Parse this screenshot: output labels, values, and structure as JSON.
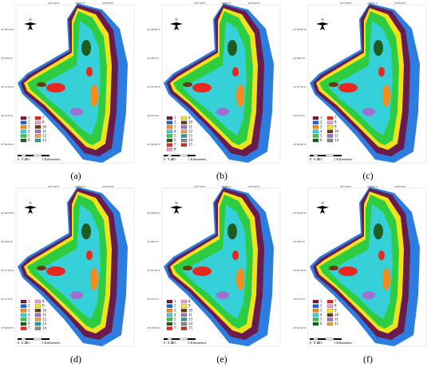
{
  "north": "N",
  "scale": [
    "0",
    "0.25",
    "0.5",
    "1 Kilometers"
  ],
  "lon_labels": [
    "20°7'30\"E",
    "20°8'0\"E",
    "20°8'30\"E"
  ],
  "lat_labels": [
    "45°48'30\"N",
    "45°48'0\"N",
    "45°47'30\"N",
    "45°47'0\"N",
    "45°46'30\"N"
  ],
  "panels": [
    {
      "label": "(a)",
      "legend_left": [
        "1",
        "2",
        "3",
        "4",
        "5",
        "6"
      ],
      "legend_right": [
        "7",
        "8",
        "10",
        "11",
        "12",
        "13"
      ]
    },
    {
      "label": "(b)",
      "legend_left": [
        "1",
        "2",
        "3",
        "4",
        "5",
        "6",
        "7",
        "8"
      ],
      "legend_right": [
        "9",
        "10",
        "11",
        "12",
        "13",
        "14",
        "15"
      ]
    },
    {
      "label": "(c)",
      "legend_left": [
        "1",
        "2",
        "3",
        "4",
        "5",
        "6"
      ],
      "legend_right": [
        "7",
        "8",
        "9",
        "10",
        "11",
        "14"
      ]
    },
    {
      "label": "(d)",
      "legend_left": [
        "1",
        "2",
        "3",
        "4",
        "5",
        "6",
        "7"
      ],
      "legend_right": [
        "8",
        "9",
        "10",
        "11",
        "12",
        "13",
        "14"
      ]
    },
    {
      "label": "(e)",
      "legend_left": [
        "1",
        "2",
        "3",
        "4",
        "5",
        "6",
        "7"
      ],
      "legend_right": [
        "8",
        "9",
        "10",
        "11",
        "13",
        "14",
        "15"
      ]
    },
    {
      "label": "(f)",
      "legend_left": [
        "1",
        "2",
        "3",
        "4",
        "5",
        "6"
      ],
      "legend_right": [
        "7",
        "8",
        "9",
        "10",
        "11",
        "12"
      ]
    }
  ]
}
